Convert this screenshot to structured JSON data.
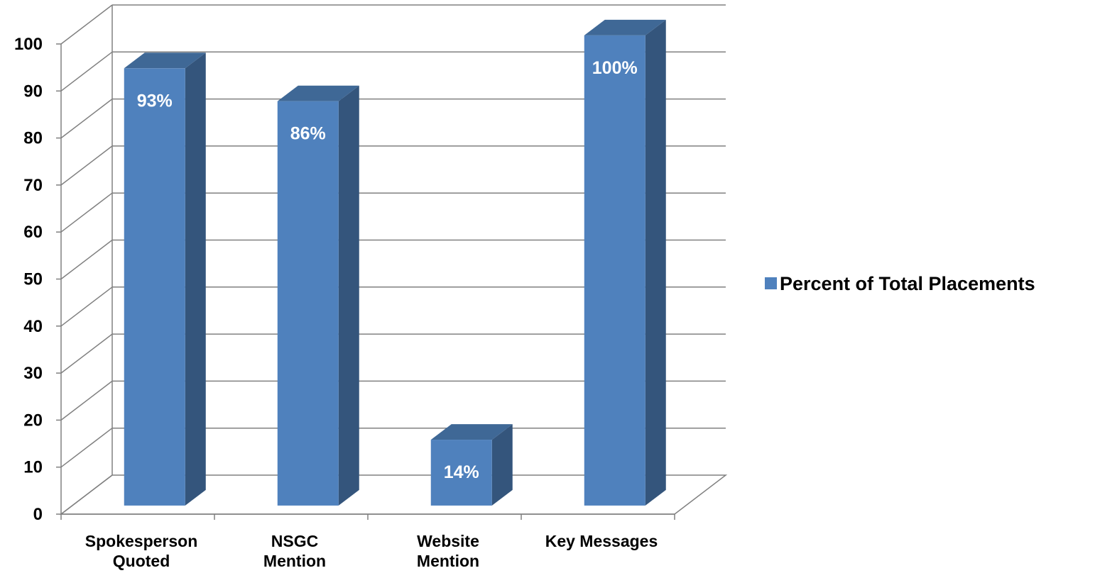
{
  "chart_data": {
    "type": "bar",
    "style": "3d-column",
    "categories": [
      [
        "Spokesperson",
        "Quoted"
      ],
      [
        "NSGC",
        "Mention"
      ],
      [
        "Website",
        "Mention"
      ],
      [
        "Key Messages"
      ]
    ],
    "series": [
      {
        "name": "Percent of Total Placements",
        "values": [
          93,
          86,
          14,
          100
        ],
        "data_labels": [
          "93%",
          "86%",
          "14%",
          "100%"
        ],
        "color": "#4F81BD",
        "side_color": "#34557C",
        "top_color": "#3F6896"
      }
    ],
    "yticks": [
      "0",
      "10",
      "20",
      "30",
      "40",
      "50",
      "60",
      "70",
      "80",
      "90",
      "100"
    ],
    "ylim": [
      0,
      100
    ],
    "grid": true,
    "legend": "right",
    "gridline_color": "#808080"
  }
}
